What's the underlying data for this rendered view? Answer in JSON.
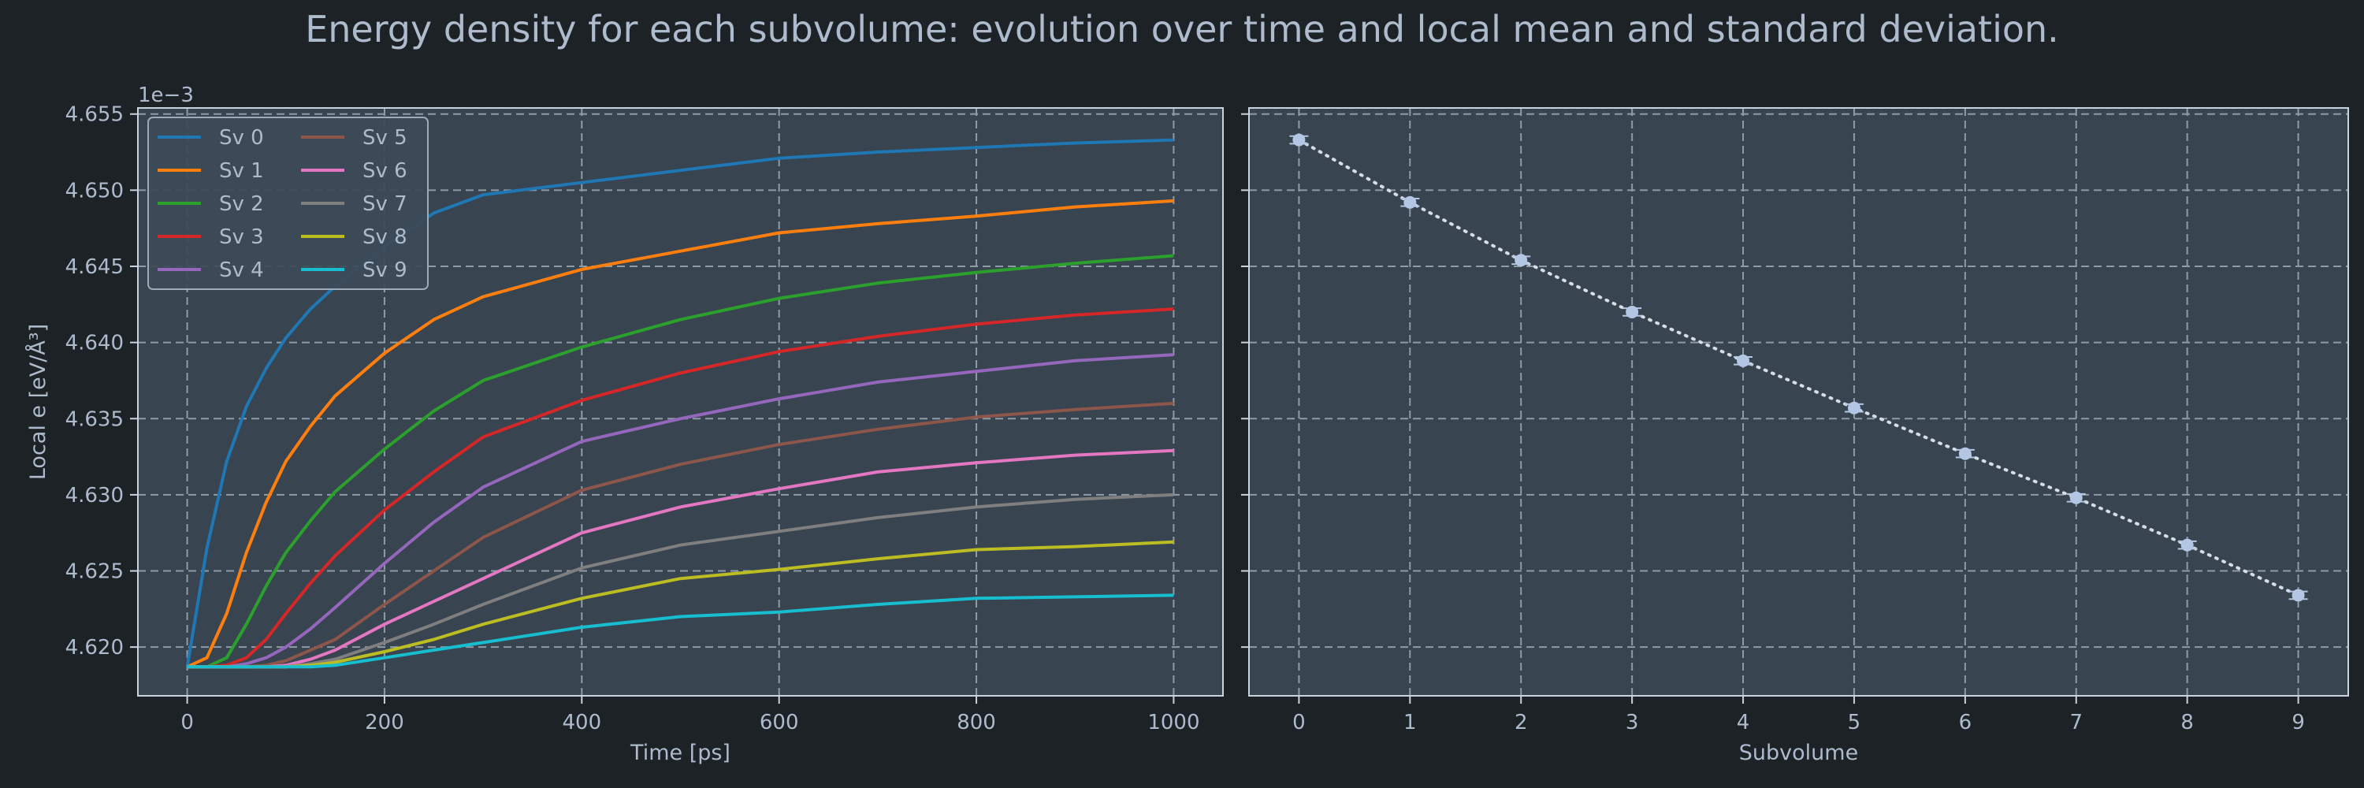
{
  "figure": {
    "title": "Energy density for each subvolume: evolution over time and local mean and standard deviation."
  },
  "colors": {
    "background": "#1d2227",
    "axes_face": "#38444f",
    "grid": "#8e9ca8",
    "text": "#aebbcc",
    "marker": "#b3c6e3"
  },
  "chart_data": [
    {
      "type": "line",
      "title": "",
      "xlabel": "Time [ps]",
      "ylabel": "Local e [eV/Å³]",
      "y_offset_label": "1e−3",
      "xlim": [
        -50,
        1050
      ],
      "ylim": [
        4.6168,
        4.6554
      ],
      "xticks": [
        0,
        200,
        400,
        600,
        800,
        1000
      ],
      "yticks": [
        4.62,
        4.625,
        4.63,
        4.635,
        4.64,
        4.645,
        4.65,
        4.655
      ],
      "ytick_labels": [
        "4.620",
        "4.625",
        "4.630",
        "4.635",
        "4.640",
        "4.645",
        "4.650",
        "4.655"
      ],
      "grid": true,
      "legend": {
        "placement": "top-left",
        "columns": 2
      },
      "x": [
        0,
        20,
        40,
        60,
        80,
        100,
        125,
        150,
        200,
        250,
        300,
        400,
        500,
        600,
        700,
        800,
        900,
        1000
      ],
      "series": [
        {
          "name": "Sv 0",
          "color": "#1f77b4",
          "values": [
            4.6187,
            4.6265,
            4.6322,
            4.6358,
            4.6383,
            4.6403,
            4.6422,
            4.6437,
            4.6463,
            4.6485,
            4.6497,
            4.6505,
            4.6513,
            4.6521,
            4.6525,
            4.6528,
            4.6531,
            4.6533
          ]
        },
        {
          "name": "Sv 1",
          "color": "#ff7f0e",
          "values": [
            4.6187,
            4.6193,
            4.6222,
            4.6262,
            4.6295,
            4.6322,
            4.6345,
            4.6365,
            4.6393,
            4.6415,
            4.643,
            4.6448,
            4.646,
            4.6472,
            4.6478,
            4.6483,
            4.6489,
            4.6493
          ]
        },
        {
          "name": "Sv 2",
          "color": "#2ca02c",
          "values": [
            4.6187,
            4.6187,
            4.6193,
            4.6215,
            4.624,
            4.6262,
            4.6283,
            4.6302,
            4.633,
            4.6355,
            4.6375,
            4.6397,
            4.6415,
            4.6429,
            4.6439,
            4.6446,
            4.6452,
            4.6457
          ]
        },
        {
          "name": "Sv 3",
          "color": "#d62728",
          "values": [
            4.6187,
            4.6187,
            4.6188,
            4.6193,
            4.6205,
            4.6222,
            4.6242,
            4.626,
            4.629,
            4.6315,
            4.6338,
            4.6362,
            4.638,
            4.6394,
            4.6404,
            4.6412,
            4.6418,
            4.6422
          ]
        },
        {
          "name": "Sv 4",
          "color": "#9467bd",
          "values": [
            4.6187,
            4.6187,
            4.6187,
            4.6189,
            4.6193,
            4.62,
            4.6212,
            4.6226,
            4.6255,
            4.6282,
            4.6305,
            4.6335,
            4.635,
            4.6363,
            4.6374,
            4.6381,
            4.6388,
            4.6392
          ]
        },
        {
          "name": "Sv 5",
          "color": "#8c564b",
          "values": [
            4.6187,
            4.6187,
            4.6187,
            4.6187,
            4.6188,
            4.6191,
            4.6198,
            4.6205,
            4.6228,
            4.625,
            4.6272,
            4.6303,
            4.632,
            4.6333,
            4.6343,
            4.6351,
            4.6356,
            4.636
          ]
        },
        {
          "name": "Sv 6",
          "color": "#e377c2",
          "values": [
            4.6187,
            4.6187,
            4.6187,
            4.6187,
            4.6187,
            4.6188,
            4.6192,
            4.6198,
            4.6215,
            4.623,
            4.6245,
            4.6275,
            4.6292,
            4.6304,
            4.6315,
            4.6321,
            4.6326,
            4.6329
          ]
        },
        {
          "name": "Sv 7",
          "color": "#7f7f7f",
          "values": [
            4.6187,
            4.6187,
            4.6187,
            4.6187,
            4.6187,
            4.6187,
            4.6189,
            4.6192,
            4.6203,
            4.6215,
            4.6228,
            4.6252,
            4.6267,
            4.6276,
            4.6285,
            4.6292,
            4.6297,
            4.63
          ]
        },
        {
          "name": "Sv 8",
          "color": "#bcbd22",
          "values": [
            4.6187,
            4.6187,
            4.6187,
            4.6187,
            4.6187,
            4.6187,
            4.6188,
            4.619,
            4.6197,
            4.6205,
            4.6215,
            4.6232,
            4.6245,
            4.6251,
            4.6258,
            4.6264,
            4.6266,
            4.6269
          ]
        },
        {
          "name": "Sv 9",
          "color": "#17becf",
          "values": [
            4.6187,
            4.6187,
            4.6187,
            4.6187,
            4.6187,
            4.6187,
            4.6187,
            4.6188,
            4.6193,
            4.6198,
            4.6203,
            4.6213,
            4.622,
            4.6223,
            4.6228,
            4.6232,
            4.6233,
            4.6234
          ]
        }
      ]
    },
    {
      "type": "scatter",
      "title": "",
      "xlabel": "Subvolume",
      "ylabel": "",
      "xlim": [
        -0.45,
        9.45
      ],
      "ylim": [
        4.6168,
        4.6554
      ],
      "xticks": [
        0,
        1,
        2,
        3,
        4,
        5,
        6,
        7,
        8,
        9
      ],
      "grid": true,
      "line_style": "dotted",
      "x": [
        0,
        1,
        2,
        3,
        4,
        5,
        6,
        7,
        8,
        9
      ],
      "values": [
        4.6533,
        4.6492,
        4.6454,
        4.642,
        4.6388,
        4.6357,
        4.6327,
        4.6298,
        4.6267,
        4.6234
      ],
      "errors": [
        0.00025,
        0.00025,
        0.00025,
        0.00025,
        0.00025,
        0.00025,
        0.00025,
        0.00025,
        0.00025,
        0.00025
      ]
    }
  ]
}
